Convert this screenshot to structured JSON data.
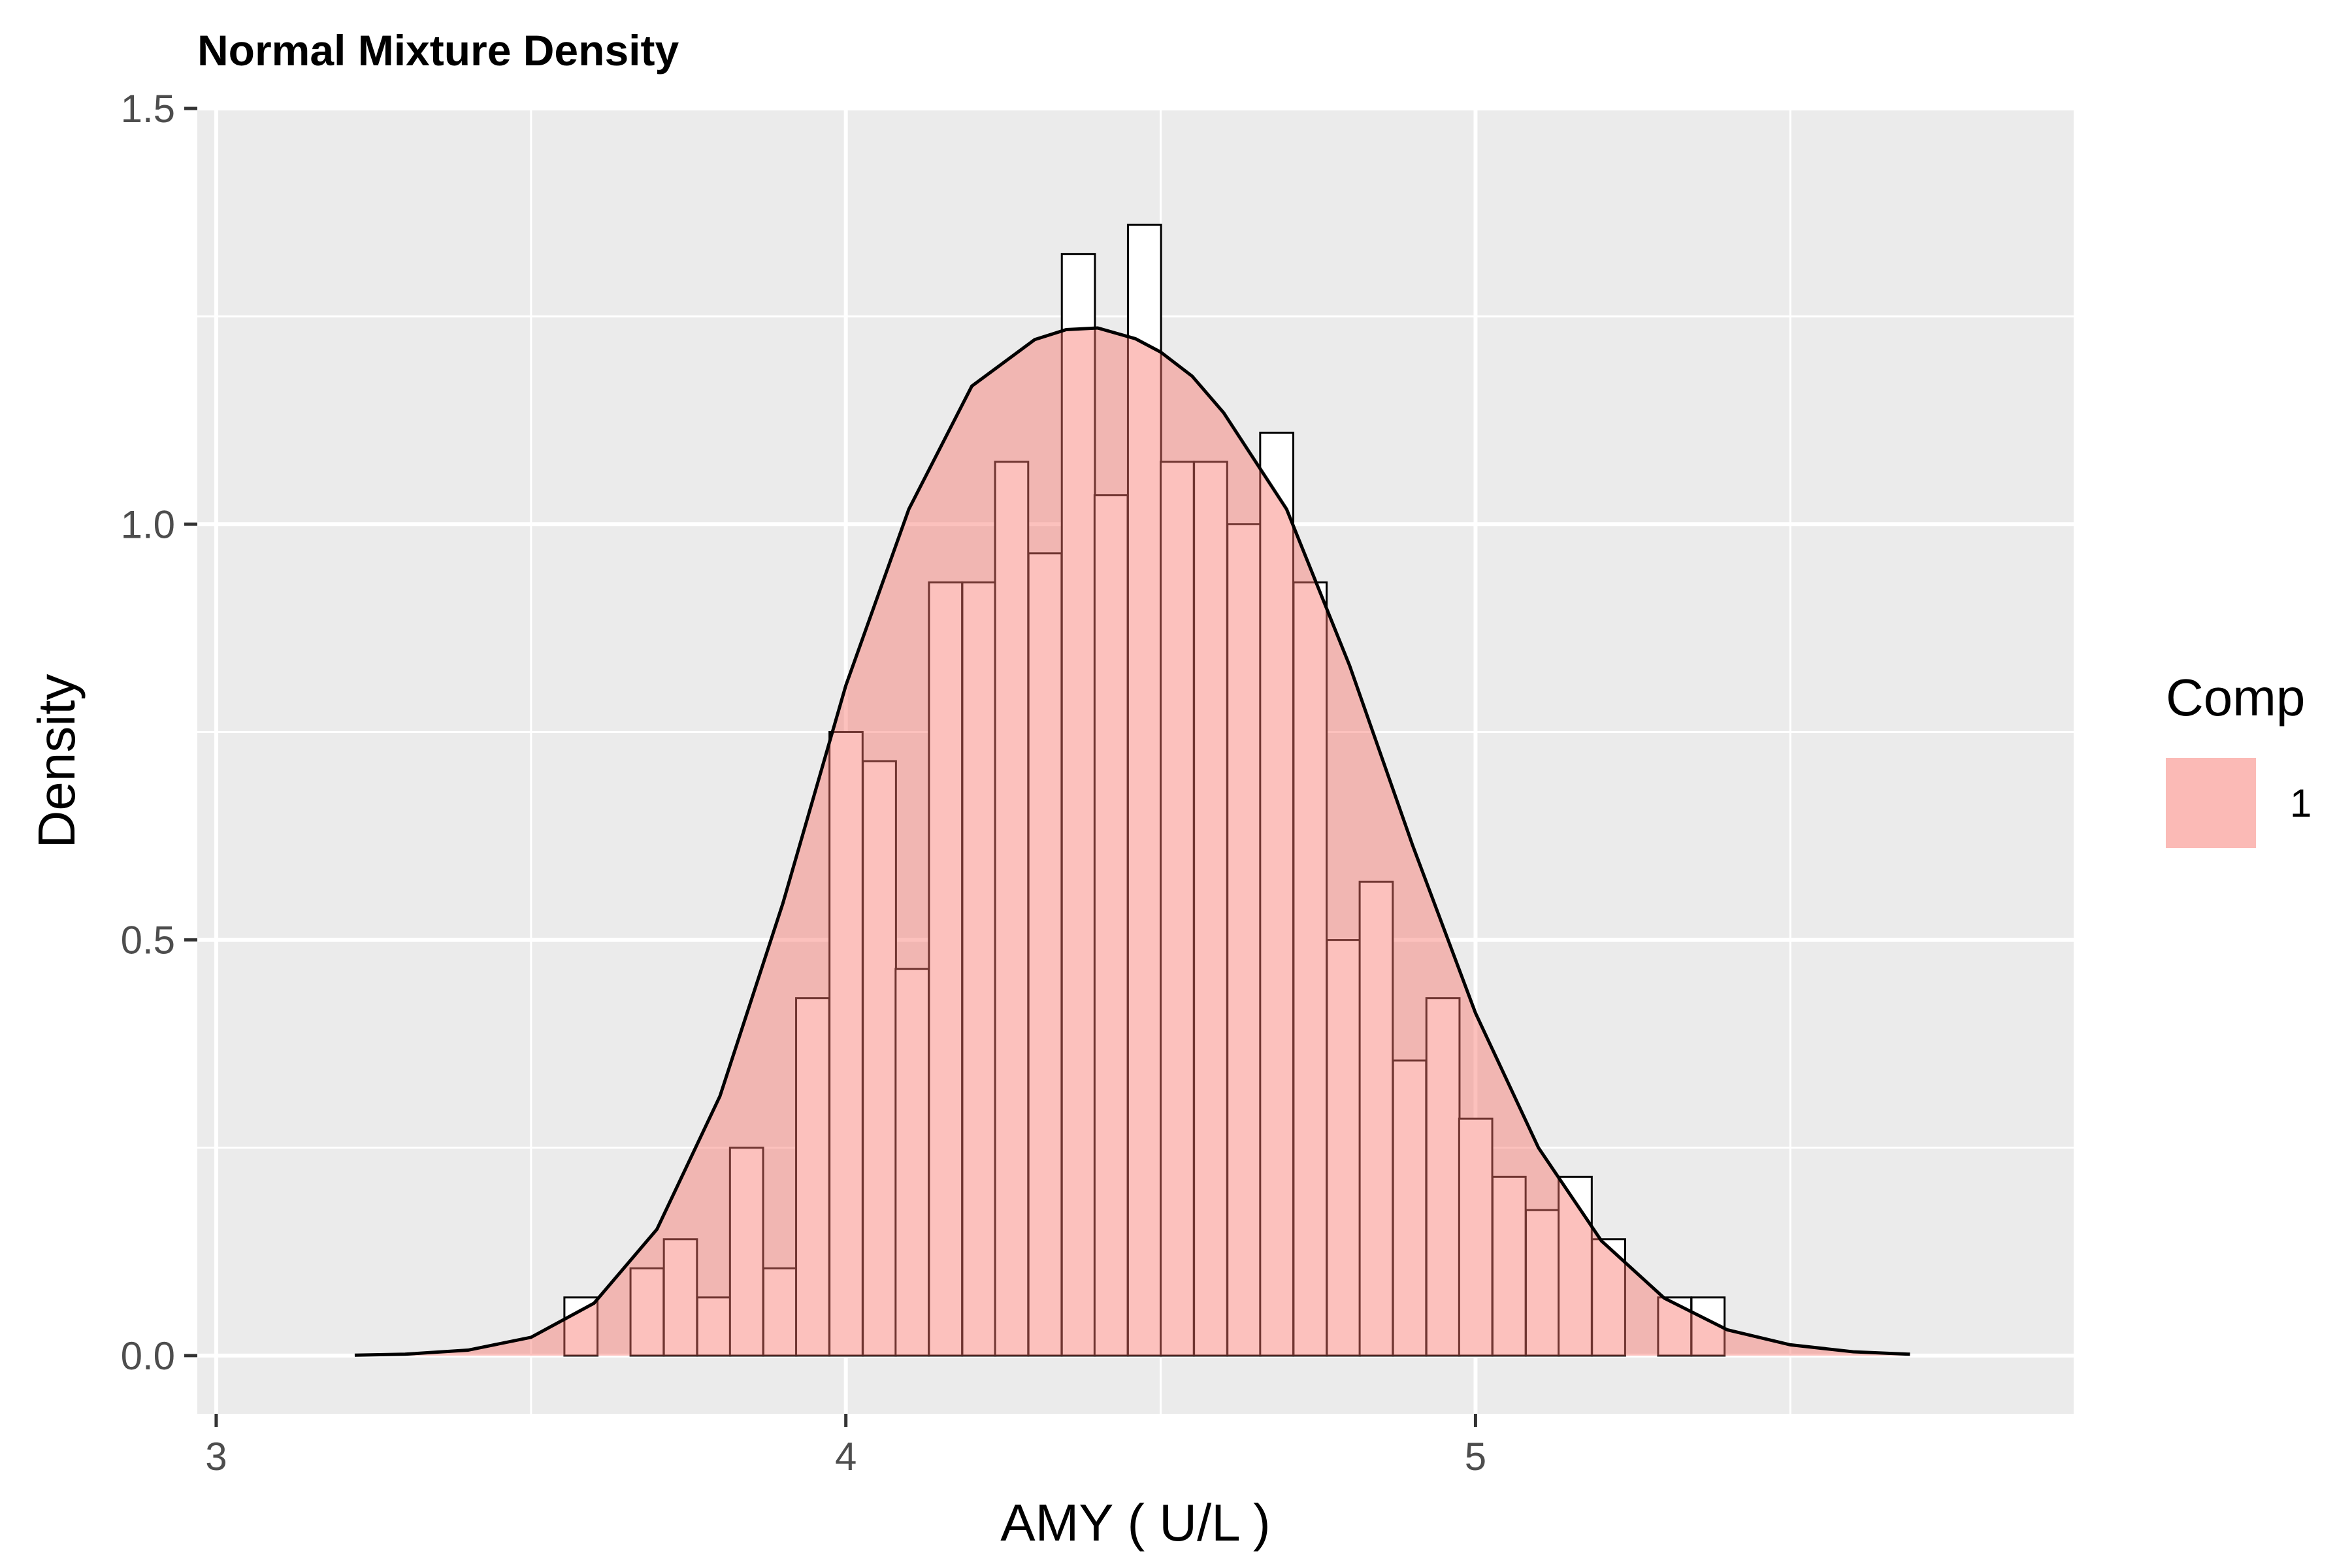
{
  "chart_data": {
    "type": "bar",
    "title": "Normal Mixture Density",
    "xlabel": "AMY ( U/L )",
    "ylabel": "Density",
    "xlim": [
      2.97,
      5.95
    ],
    "ylim": [
      -0.07,
      1.5
    ],
    "x_ticks": [
      3,
      4,
      5
    ],
    "x_tick_labels": [
      "3",
      "4",
      "5"
    ],
    "x_minor_ticks": [
      3.5,
      4.5,
      5.5
    ],
    "y_ticks": [
      0,
      0.5,
      1,
      1.5
    ],
    "y_tick_labels": [
      "0.0",
      "0.5",
      "1.0",
      "1.5"
    ],
    "y_minor_ticks": [
      0.25,
      0.75,
      1.25
    ],
    "grid": true,
    "bin_width": 0.0526,
    "histogram": {
      "bin_left": [
        3.553,
        3.606,
        3.658,
        3.711,
        3.764,
        3.816,
        3.869,
        3.921,
        3.974,
        4.027,
        4.079,
        4.132,
        4.185,
        4.237,
        4.29,
        4.343,
        4.395,
        4.448,
        4.5,
        4.553,
        4.606,
        4.658,
        4.711,
        4.764,
        4.816,
        4.869,
        4.922,
        4.974,
        5.027,
        5.08,
        5.132,
        5.185,
        5.237,
        5.29,
        5.343
      ],
      "density": [
        0.07,
        0.0,
        0.105,
        0.14,
        0.07,
        0.25,
        0.105,
        0.43,
        0.75,
        0.715,
        0.465,
        0.93,
        0.93,
        1.075,
        0.965,
        1.325,
        1.035,
        1.36,
        1.075,
        1.075,
        1.0,
        1.11,
        0.93,
        0.5,
        0.57,
        0.355,
        0.43,
        0.285,
        0.215,
        0.175,
        0.215,
        0.14,
        0.0,
        0.07,
        0.07
      ]
    },
    "series": [
      {
        "name": "1",
        "type": "density",
        "fill": "#F8766D",
        "x": [
          3.22,
          3.3,
          3.4,
          3.5,
          3.6,
          3.7,
          3.8,
          3.9,
          4.0,
          4.1,
          4.2,
          4.3,
          4.35,
          4.4,
          4.46,
          4.5,
          4.55,
          4.6,
          4.7,
          4.8,
          4.9,
          5.0,
          5.1,
          5.2,
          5.3,
          5.4,
          5.5,
          5.6,
          5.69
        ],
        "y": [
          0.0005,
          0.0017,
          0.0066,
          0.022,
          0.063,
          0.152,
          0.312,
          0.544,
          0.806,
          1.018,
          1.166,
          1.222,
          1.234,
          1.236,
          1.223,
          1.207,
          1.178,
          1.134,
          1.018,
          0.83,
          0.614,
          0.412,
          0.25,
          0.138,
          0.069,
          0.031,
          0.013,
          0.0046,
          0.0017
        ]
      }
    ],
    "legend": {
      "title": "Comp",
      "labels": [
        "1"
      ],
      "position": "right"
    }
  },
  "colors": {
    "panel_bg": "#EBEBEB",
    "grid": "#FFFFFF",
    "density_fill": "#F8766D",
    "legend_key": "#F8766D",
    "hist_edge": "#000000"
  }
}
